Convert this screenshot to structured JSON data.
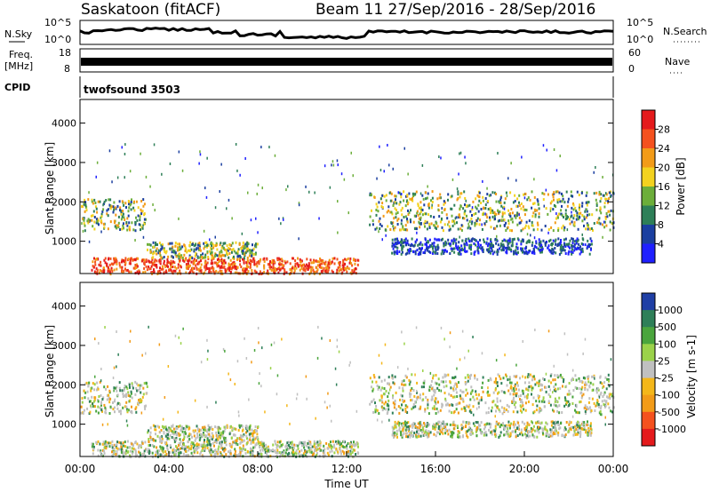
{
  "header": {
    "station": "Saskatoon (fitACF)",
    "beam_date": "Beam 11  27/Sep/2016 - 28/Sep/2016"
  },
  "status_panel": {
    "nsky_label": "N.Sky",
    "nsearch_label": "N.Search",
    "nsky_ticks": [
      "10^5",
      "10^0"
    ],
    "freq_label_1": "Freq.",
    "freq_label_2": "[MHz]",
    "freq_ticks": [
      "18",
      "8"
    ],
    "nave_label": "Nave",
    "nave_ticks": [
      "60",
      "0"
    ],
    "cpid_label": "CPID",
    "cpid_value": "twofsound 3503"
  },
  "chart_data": [
    {
      "type": "heatmap",
      "name": "power",
      "ylabel": "Slant Range [km]",
      "colorbar_label": "Power [dB]",
      "colorbar_ticks": [
        "28",
        "24",
        "20",
        "16",
        "12",
        "8",
        "4"
      ],
      "colorbar_colors": [
        "#e41a1c",
        "#f4511e",
        "#f29b18",
        "#f3d21f",
        "#6cae3a",
        "#2e7f58",
        "#1b3fa0",
        "#1f20ff"
      ],
      "y_ticks": [
        "4000",
        "3000",
        "2000",
        "1000"
      ],
      "x_ticks": [
        "00:00",
        "04:00",
        "08:00",
        "12:00",
        "16:00",
        "20:00",
        "00:00"
      ],
      "xlim": [
        "00:00",
        "24:00"
      ],
      "ylim": [
        180,
        4600
      ],
      "echo_bands": [
        {
          "t": [
            0,
            3
          ],
          "r": [
            1300,
            2100
          ],
          "level": "medium"
        },
        {
          "t": [
            0.5,
            12.5
          ],
          "r": [
            200,
            600
          ],
          "level": "high"
        },
        {
          "t": [
            3,
            8
          ],
          "r": [
            600,
            1000
          ],
          "level": "medium"
        },
        {
          "t": [
            13,
            24
          ],
          "r": [
            1300,
            2300
          ],
          "level": "medium"
        },
        {
          "t": [
            14,
            23
          ],
          "r": [
            700,
            1100
          ],
          "level": "low"
        }
      ]
    },
    {
      "type": "heatmap",
      "name": "velocity",
      "ylabel": "Slant Range [km]",
      "colorbar_label": "Velocity [m s-1]",
      "colorbar_ticks": [
        "1000",
        "500",
        "100",
        "25",
        "-25",
        "-100",
        "-500",
        "-1000"
      ],
      "colorbar_colors": [
        "#1f3fa5",
        "#2e7f58",
        "#4aa53d",
        "#9bd24a",
        "#c0c0c0",
        "#f4b71a",
        "#f29b18",
        "#f4511e",
        "#e41a1c"
      ],
      "y_ticks": [
        "4000",
        "3000",
        "2000",
        "1000"
      ],
      "x_ticks": [
        "00:00",
        "04:00",
        "08:00",
        "12:00",
        "16:00",
        "20:00",
        "00:00"
      ],
      "xlabel": "Time UT",
      "xlim": [
        "00:00",
        "24:00"
      ],
      "ylim": [
        180,
        4600
      ]
    }
  ]
}
